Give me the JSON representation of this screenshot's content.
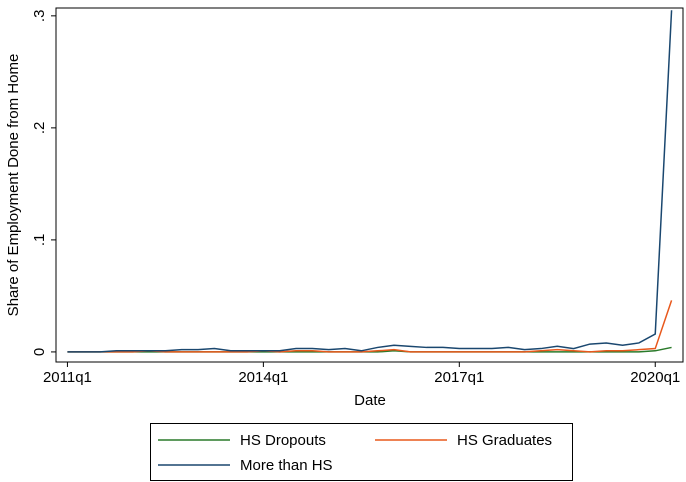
{
  "chart_data": {
    "type": "line",
    "x_label": "Date",
    "y_label": "Share of Employment Done from Home",
    "x": [
      204,
      205,
      206,
      207,
      208,
      209,
      210,
      211,
      212,
      213,
      214,
      215,
      216,
      217,
      218,
      219,
      220,
      221,
      222,
      223,
      224,
      225,
      226,
      227,
      228,
      229,
      230,
      231,
      232,
      233,
      234,
      235,
      236,
      237,
      238,
      239,
      240,
      241
    ],
    "series": [
      {
        "name": "HS Dropouts",
        "color": "#2a7a2a",
        "values": [
          0,
          0,
          0,
          0,
          0,
          0,
          0,
          0,
          0,
          0,
          0,
          0,
          0,
          0,
          0,
          0,
          0,
          0,
          0,
          0,
          0.001,
          0,
          0,
          0,
          0,
          0,
          0,
          0,
          0,
          0,
          0,
          0,
          0,
          0,
          0,
          0,
          0.001,
          0.004
        ]
      },
      {
        "name": "HS Graduates",
        "color": "#e8581c",
        "values": [
          0,
          0,
          0,
          0,
          0,
          0.001,
          0,
          0,
          0,
          0,
          0,
          0,
          0.001,
          0,
          0.001,
          0.001,
          0,
          0,
          0,
          0.001,
          0.002,
          0,
          0,
          0,
          0,
          0,
          0,
          0,
          0,
          0.001,
          0.002,
          0.001,
          0,
          0.001,
          0.001,
          0.002,
          0.003,
          0.046
        ]
      },
      {
        "name": "More than HS",
        "color": "#1a476f",
        "values": [
          0,
          0,
          0,
          0.001,
          0.001,
          0.001,
          0.001,
          0.002,
          0.002,
          0.003,
          0.001,
          0.001,
          0.001,
          0.001,
          0.003,
          0.003,
          0.002,
          0.003,
          0.001,
          0.004,
          0.006,
          0.005,
          0.004,
          0.004,
          0.003,
          0.003,
          0.003,
          0.004,
          0.002,
          0.003,
          0.005,
          0.003,
          0.007,
          0.008,
          0.006,
          0.008,
          0.016,
          0.305
        ]
      }
    ],
    "xlim": [
      203.3,
      241.7
    ],
    "xticks": [
      {
        "value": 204,
        "label": "2011q1"
      },
      {
        "value": 216,
        "label": "2014q1"
      },
      {
        "value": 228,
        "label": "2017q1"
      },
      {
        "value": 240,
        "label": "2020q1"
      }
    ],
    "ylim": [
      -0.009,
      0.307
    ],
    "yticks": [
      0,
      {
        "value": 0.1,
        "label": ".1"
      },
      {
        "value": 0.2,
        "label": ".2"
      },
      {
        "value": 0.3,
        "label": ".3"
      }
    ],
    "legend": "bottom"
  }
}
